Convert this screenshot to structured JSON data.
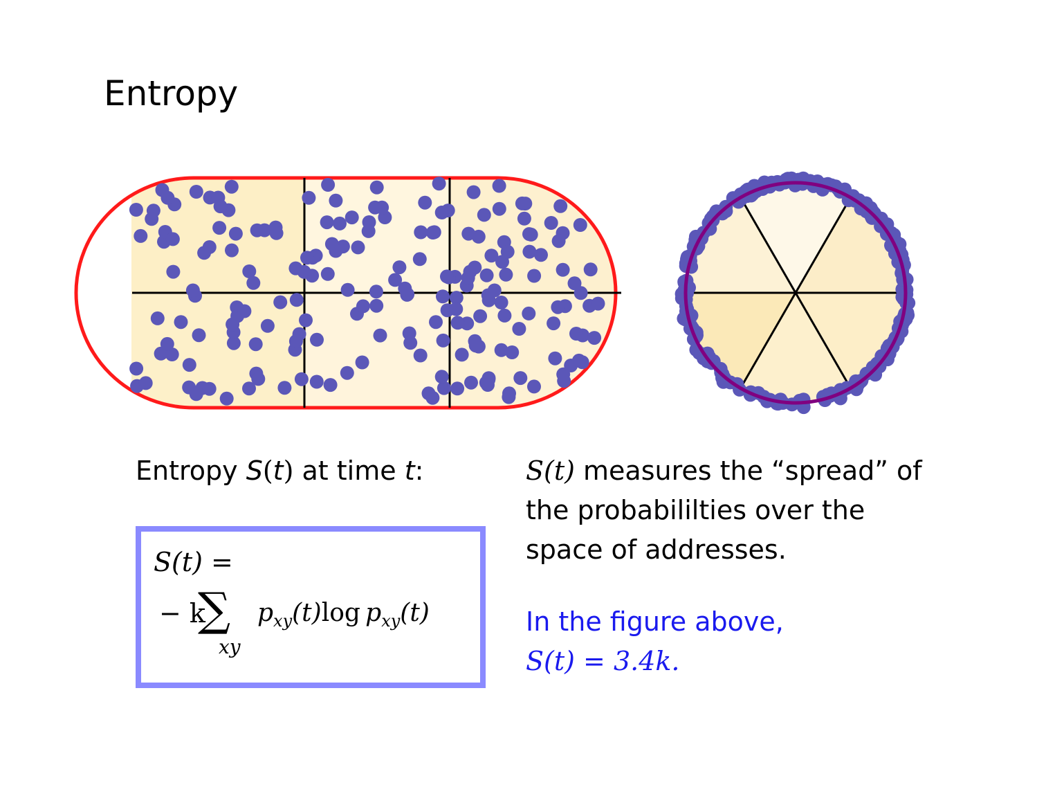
{
  "slide": {
    "title": "Entropy"
  },
  "left": {
    "caption_prefix": "Entropy ",
    "caption_symbol": "S",
    "caption_paren_open": "(",
    "caption_t": "t",
    "caption_paren_close": ")",
    "caption_mid": " at time ",
    "caption_t2": "t",
    "caption_end": ":"
  },
  "formula": {
    "line1": "S(t) =",
    "minus_k": "− k",
    "sigma": "∑",
    "sum_index": "xy",
    "p1": "p",
    "p1_sub": "xy",
    "arg1": "(t)",
    "log": "log",
    "p2": "p",
    "p2_sub": "xy",
    "arg2": "(t)"
  },
  "right": {
    "s_of_t": "S(t)",
    "description": " measures the “spread” of the probabililties over the space of addresses.",
    "note_line1": "In the figure above,",
    "note_line2": "S(t) = 3.4k."
  },
  "colors": {
    "particle": "#5b57b8",
    "capsule_fill": "#fff4d6",
    "capsule_border": "#ff1a1a",
    "circle_border": "#800080",
    "formula_border": "#8a8aff",
    "note_text": "#1a1aee"
  },
  "icons": {
    "particle": "dot-icon"
  }
}
